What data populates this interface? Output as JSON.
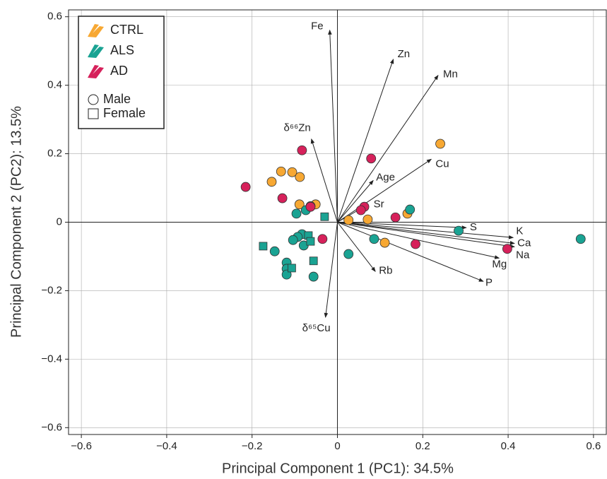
{
  "chart_data": {
    "type": "biplot",
    "xlabel": "Principal Component 1 (PC1): 34.5%",
    "ylabel": "Principal Component 2 (PC2): 13.5%",
    "xlim": [
      -0.63,
      0.63
    ],
    "ylim": [
      -0.62,
      0.62
    ],
    "xticks": [
      {
        "value": -0.6,
        "label": "−0.6"
      },
      {
        "value": -0.4,
        "label": "−0.4"
      },
      {
        "value": -0.2,
        "label": "−0.2"
      },
      0,
      0.2,
      0.4,
      0.6
    ],
    "yticks": [
      {
        "value": -0.6,
        "label": "−0.6"
      },
      {
        "value": -0.4,
        "label": "−0.4"
      },
      {
        "value": -0.2,
        "label": "−0.2"
      },
      0,
      0.2,
      0.4,
      0.6
    ],
    "grid": true,
    "legend_position": "upper left",
    "shape_legend": [
      {
        "name": "Male",
        "marker": "circle"
      },
      {
        "name": "Female",
        "marker": "square"
      }
    ],
    "series": [
      {
        "name": "CTRL",
        "color": "#f7a833",
        "male_x": [
          0.241,
          -0.132,
          -0.106,
          -0.088,
          -0.154,
          -0.089,
          -0.051,
          0.026,
          0.071,
          0.164,
          0.111
        ],
        "male_y": [
          0.229,
          0.148,
          0.146,
          0.132,
          0.118,
          0.052,
          0.052,
          0.006,
          0.008,
          0.025,
          -0.06
        ],
        "female_x": [],
        "female_y": []
      },
      {
        "name": "ALS",
        "color": "#1aa393",
        "male_x": [
          0.17,
          -0.074,
          -0.096,
          -0.063,
          0.284,
          0.57,
          0.086,
          0.026,
          -0.083,
          -0.093,
          -0.104,
          -0.079,
          -0.147,
          -0.119,
          -0.119,
          -0.119,
          -0.056
        ],
        "male_y": [
          0.037,
          0.035,
          0.025,
          0.047,
          -0.025,
          -0.049,
          -0.049,
          -0.093,
          -0.035,
          -0.043,
          -0.052,
          -0.068,
          -0.085,
          -0.118,
          -0.136,
          -0.153,
          -0.159
        ],
        "female_x": [
          -0.03,
          -0.174,
          -0.068,
          -0.063,
          -0.056,
          -0.107
        ],
        "female_y": [
          0.016,
          -0.07,
          -0.039,
          -0.056,
          -0.113,
          -0.134
        ]
      },
      {
        "name": "AD",
        "color": "#d6215b",
        "male_x": [
          -0.083,
          0.079,
          -0.215,
          -0.129,
          -0.063,
          0.063,
          0.055,
          0.136,
          0.183,
          0.398,
          -0.035
        ],
        "male_y": [
          0.21,
          0.186,
          0.103,
          0.07,
          0.045,
          0.045,
          0.035,
          0.014,
          -0.064,
          -0.078,
          -0.049
        ],
        "female_x": [],
        "female_y": []
      }
    ],
    "loadings": [
      {
        "label": "Fe",
        "x": -0.018,
        "y": 0.561
      },
      {
        "label": "Zn",
        "x": 0.131,
        "y": 0.476
      },
      {
        "label": "Mn",
        "x": 0.236,
        "y": 0.429
      },
      {
        "label": "δ⁶⁶Zn",
        "x": -0.061,
        "y": 0.243
      },
      {
        "label": "Cu",
        "x": 0.22,
        "y": 0.184
      },
      {
        "label": "Age",
        "x": 0.084,
        "y": 0.122
      },
      {
        "label": "Sr",
        "x": 0.068,
        "y": 0.049
      },
      {
        "label": "S",
        "x": 0.302,
        "y": -0.016
      },
      {
        "label": "K",
        "x": 0.412,
        "y": -0.045
      },
      {
        "label": "Ca",
        "x": 0.415,
        "y": -0.062
      },
      {
        "label": "Na",
        "x": 0.415,
        "y": -0.072
      },
      {
        "label": "Mg",
        "x": 0.379,
        "y": -0.105
      },
      {
        "label": "P",
        "x": 0.342,
        "y": -0.173
      },
      {
        "label": "Rb",
        "x": 0.089,
        "y": -0.144
      },
      {
        "label": "δ⁶⁵Cu",
        "x": -0.028,
        "y": -0.278
      }
    ]
  }
}
